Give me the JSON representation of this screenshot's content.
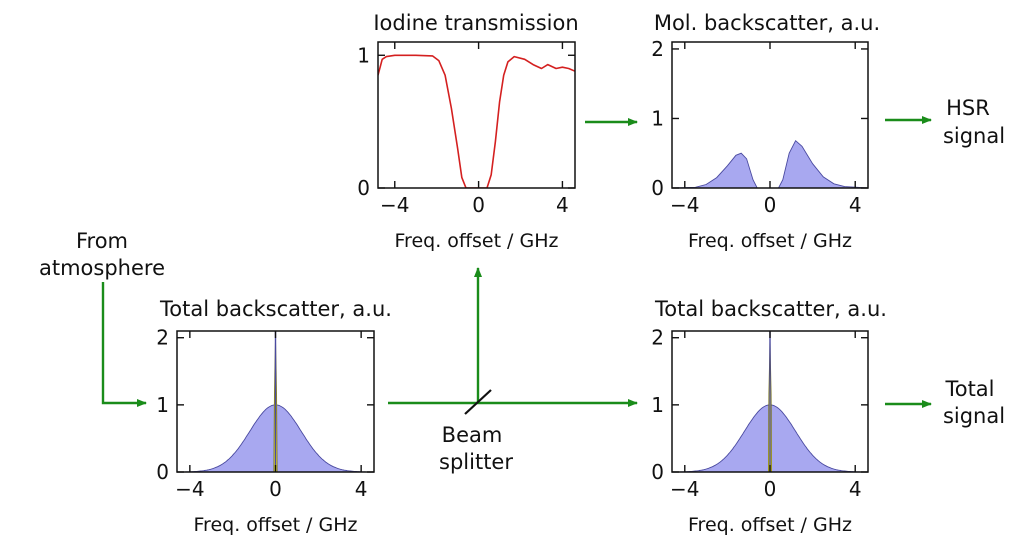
{
  "labels": {
    "from": "From",
    "atmosphere": "atmosphere",
    "beam": "Beam",
    "splitter": "splitter",
    "hsr_1": "HSR",
    "hsr_2": "signal",
    "total_1": "Total",
    "total_2": "signal"
  },
  "colors": {
    "arrow": "#1a8c1a",
    "iodine_line": "#d42020",
    "fill": "#a8a8f0",
    "fill_edge": "#4a4aa0",
    "aerosol": "#e8e020",
    "axis": "#111111"
  },
  "chart_data": [
    {
      "id": "iodine",
      "type": "line",
      "title": "Iodine transmission",
      "xlabel": "Freq. offset / GHz",
      "xlim": [
        -4.8,
        4.6
      ],
      "ylim": [
        0,
        1.1
      ],
      "xticks": [
        -4,
        0,
        4
      ],
      "xtick_labels": [
        "−4",
        "0",
        "4"
      ],
      "yticks": [
        0,
        1
      ],
      "ytick_labels": [
        "0",
        "1"
      ],
      "series": [
        {
          "values": [
            [
              -4.8,
              0.85
            ],
            [
              -4.6,
              0.97
            ],
            [
              -4.4,
              0.99
            ],
            [
              -4,
              1.0
            ],
            [
              -3,
              1.0
            ],
            [
              -2.2,
              0.995
            ],
            [
              -1.9,
              0.96
            ],
            [
              -1.6,
              0.85
            ],
            [
              -1.3,
              0.6
            ],
            [
              -1.0,
              0.3
            ],
            [
              -0.8,
              0.08
            ],
            [
              -0.6,
              0.0
            ],
            [
              0.4,
              0.0
            ],
            [
              0.6,
              0.1
            ],
            [
              0.8,
              0.35
            ],
            [
              1.0,
              0.65
            ],
            [
              1.2,
              0.85
            ],
            [
              1.4,
              0.95
            ],
            [
              1.7,
              0.99
            ],
            [
              2.2,
              0.97
            ],
            [
              2.6,
              0.93
            ],
            [
              3.0,
              0.9
            ],
            [
              3.3,
              0.93
            ],
            [
              3.7,
              0.9
            ],
            [
              4.0,
              0.91
            ],
            [
              4.3,
              0.9
            ],
            [
              4.6,
              0.88
            ]
          ]
        }
      ]
    },
    {
      "id": "molecular",
      "type": "area",
      "title": "Mol. backscatter, a.u.",
      "xlabel": "Freq. offset / GHz",
      "xlim": [
        -4.6,
        4.6
      ],
      "ylim": [
        0,
        2.1
      ],
      "xticks": [
        -4,
        0,
        4
      ],
      "xtick_labels": [
        "−4",
        "0",
        "4"
      ],
      "yticks": [
        0,
        1,
        2
      ],
      "ytick_labels": [
        "0",
        "1",
        "2"
      ],
      "series": [
        {
          "values": [
            [
              -4.6,
              0
            ],
            [
              -3.5,
              0.01
            ],
            [
              -3,
              0.05
            ],
            [
              -2.5,
              0.15
            ],
            [
              -2,
              0.32
            ],
            [
              -1.6,
              0.47
            ],
            [
              -1.35,
              0.5
            ],
            [
              -1.1,
              0.42
            ],
            [
              -0.8,
              0.12
            ],
            [
              -0.6,
              0.0
            ],
            [
              0.4,
              0.0
            ],
            [
              0.6,
              0.12
            ],
            [
              0.9,
              0.5
            ],
            [
              1.2,
              0.68
            ],
            [
              1.5,
              0.6
            ],
            [
              2,
              0.35
            ],
            [
              2.5,
              0.16
            ],
            [
              3,
              0.06
            ],
            [
              3.5,
              0.02
            ],
            [
              4.6,
              0
            ]
          ]
        }
      ]
    },
    {
      "id": "total_left",
      "type": "area",
      "title": "Total backscatter, a.u.",
      "xlabel": "Freq. offset / GHz",
      "xlim": [
        -4.6,
        4.6
      ],
      "ylim": [
        0,
        2.1
      ],
      "xticks": [
        -4,
        0,
        4
      ],
      "xtick_labels": [
        "−4",
        "0",
        "4"
      ],
      "yticks": [
        0,
        1,
        2
      ],
      "ytick_labels": [
        "0",
        "1",
        "2"
      ],
      "series": [
        {
          "name": "",
          "gaussian_peak": 1.0,
          "gaussian_sigma": 1.2,
          "peak_center": 0.0
        },
        {
          "name": "",
          "spike_height": 2.1,
          "spike_center": 0.0,
          "spike_halfwidth": 0.08
        }
      ]
    },
    {
      "id": "total_right",
      "type": "area",
      "title": "Total backscatter, a.u.",
      "xlabel": "Freq. offset / GHz",
      "xlim": [
        -4.6,
        4.6
      ],
      "ylim": [
        0,
        2.1
      ],
      "xticks": [
        -4,
        0,
        4
      ],
      "xtick_labels": [
        "−4",
        "0",
        "4"
      ],
      "yticks": [
        0,
        1,
        2
      ],
      "ytick_labels": [
        "0",
        "1",
        "2"
      ],
      "series": [
        {
          "name": "",
          "gaussian_peak": 1.0,
          "gaussian_sigma": 1.2,
          "peak_center": 0.0
        },
        {
          "name": "",
          "spike_height": 2.1,
          "spike_center": 0.0,
          "spike_halfwidth": 0.08
        }
      ]
    }
  ]
}
